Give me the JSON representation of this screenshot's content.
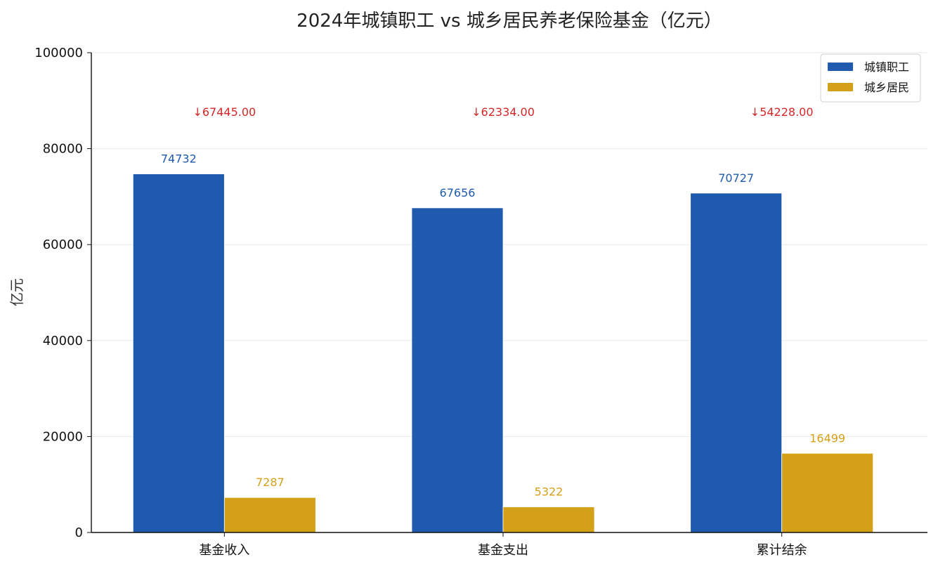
{
  "chart_data": {
    "type": "bar",
    "title": "2024年城镇职工 vs 城乡居民养老保险基金（亿元）",
    "xlabel": "",
    "ylabel": "亿元",
    "categories": [
      "基金收入",
      "基金支出",
      "累计结余"
    ],
    "series": [
      {
        "name": "城镇职工",
        "values": [
          74732,
          67656,
          70727
        ],
        "color": "#1F5AAF"
      },
      {
        "name": "城乡居民",
        "values": [
          7287,
          5322,
          16499
        ],
        "color": "#D4A017"
      }
    ],
    "data_labels": [
      [
        "74732",
        "67656",
        "70727"
      ],
      [
        "7287",
        "5322",
        "16499"
      ]
    ],
    "annotations": [
      "↓67445.00",
      "↓62334.00",
      "↓54228.00"
    ],
    "ylim": [
      0,
      100000
    ],
    "yticks": [
      0,
      20000,
      40000,
      60000,
      80000,
      100000
    ],
    "ytick_labels": [
      "0",
      "20000",
      "40000",
      "60000",
      "80000",
      "100000"
    ],
    "grid": true,
    "legend_position": "top-right"
  }
}
